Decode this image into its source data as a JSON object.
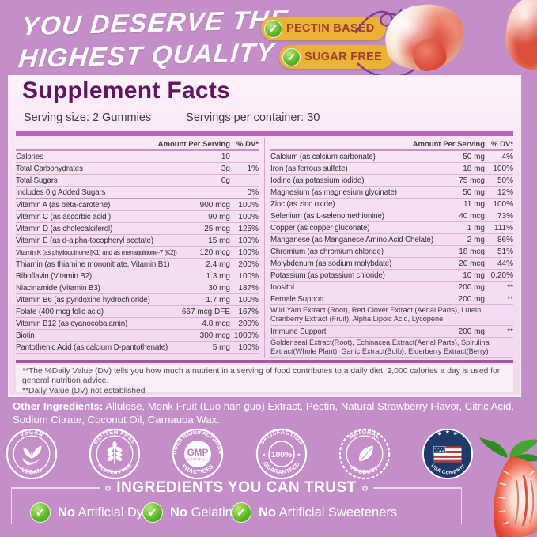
{
  "colors": {
    "background": "#c48fc8",
    "panel": "#f6e1f3",
    "bar_purple": "#b767b5",
    "bar_dark": "#a458a4",
    "title_purple": "#621560",
    "badge_yellow": "#ecb233",
    "badge_text": "#9c4030",
    "check_green": "#58b422",
    "text_dark": "#332d33",
    "white": "#ffffff",
    "usa_navy": "#1e3a6b"
  },
  "header": {
    "title_line1": "YOU DESERVE THE",
    "title_line2": "HIGHEST QUALITY",
    "badges": [
      {
        "label": "PECTIN BASED"
      },
      {
        "label": "SUGAR FREE"
      }
    ],
    "check_glyph": "✓"
  },
  "supplement": {
    "title": "Supplement Facts",
    "serving_size": "Serving size: 2 Gummies",
    "servings_per_container": "Servings per container: 30",
    "col_header_amount": "Amount Per Serving",
    "col_header_dv": "% DV*",
    "left_rows": [
      {
        "name": "Calories",
        "amount": "10",
        "dv": ""
      },
      {
        "name": "Total Carbohydrates",
        "amount": "3g",
        "dv": "1%"
      },
      {
        "name": "Total Sugars",
        "amount": "0g",
        "dv": ""
      },
      {
        "name": "Includes 0 g Added Sugars",
        "amount": "",
        "dv": "0%",
        "thick": true
      },
      {
        "name": "Vitamin A (as beta-carotene)",
        "amount": "900 mcg",
        "dv": "100%"
      },
      {
        "name": "Vitamin C (as ascorbic acid )",
        "amount": "90 mg",
        "dv": "100%"
      },
      {
        "name": "Vitamin D (as cholecalciferol)",
        "amount": "25 mcg",
        "dv": "125%"
      },
      {
        "name": "Vitamin E (as d-alpha-tocopheryl acetate)",
        "amount": "15 mg",
        "dv": "100%"
      },
      {
        "name": "Vitamin K (as phylloquinone [K1] and as menaquinone-7 [K2])",
        "amount": "120 mcg",
        "dv": "100%",
        "small": true
      },
      {
        "name": "Thiamin (as thiamine mononitrate, Vitamin B1)",
        "amount": "2.4 mg",
        "dv": "200%"
      },
      {
        "name": "Riboflavin (Vitamin B2)",
        "amount": "1.3 mg",
        "dv": "100%"
      },
      {
        "name": "Niacinamide (Vitamin B3)",
        "amount": "30 mg",
        "dv": "187%"
      },
      {
        "name": "Vitamin B6 (as pyridoxine hydrochloride)",
        "amount": "1.7 mg",
        "dv": "100%"
      },
      {
        "name": "Folate (400 mcg folic acid)",
        "amount": "667 mcg DFE",
        "dv": "167%"
      },
      {
        "name": "Vitamin B12 (as cyanocobalamin)",
        "amount": "4.8 mcg",
        "dv": "200%"
      },
      {
        "name": "Biotin",
        "amount": "300 mcg",
        "dv": "1000%"
      },
      {
        "name": "Pantothenic Acid (as calcium D-pantothenate)",
        "amount": "5 mg",
        "dv": "100%"
      }
    ],
    "right_rows": [
      {
        "name": "Calcium (as calcium carbonate)",
        "amount": "50 mg",
        "dv": "4%"
      },
      {
        "name": "Iron (as ferrous sulfate)",
        "amount": "18 mg",
        "dv": "100%"
      },
      {
        "name": "Iodine (as potassium iodide)",
        "amount": "75 mcg",
        "dv": "50%"
      },
      {
        "name": "Magnesium (as magnesium glycinate)",
        "amount": "50 mg",
        "dv": "12%"
      },
      {
        "name": "Zinc (as zinc oxide)",
        "amount": "11 mg",
        "dv": "100%"
      },
      {
        "name": "Selenium (as L-selenomethionine)",
        "amount": "40 mcg",
        "dv": "73%"
      },
      {
        "name": "Copper (as copper gluconate)",
        "amount": "1 mg",
        "dv": "111%"
      },
      {
        "name": "Manganese (as Manganese Amino Acid Chelate)",
        "amount": "2 mg",
        "dv": "86%"
      },
      {
        "name": "Chromium (as chromium chloride)",
        "amount": "18 mcg",
        "dv": "51%"
      },
      {
        "name": "Molybdenum (as sodium molybdate)",
        "amount": "20 mcg",
        "dv": "44%"
      },
      {
        "name": "Potassium (as potassium chloride)",
        "amount": "10 mg",
        "dv": "0.20%"
      },
      {
        "name": "Inositol",
        "amount": "200 mg",
        "dv": "**"
      },
      {
        "name": "Female Support",
        "amount": "200 mg",
        "dv": "**",
        "desc": "Wild Yam Extract (Root), Red Clover Extract (Aerial Parts), Lutein, Cranberry Extract (Fruit), Alpha Lipoic Acid, Lycopene."
      },
      {
        "name": "Immune Support",
        "amount": "200 mg",
        "dv": "**",
        "desc": "Goldenseal Extract(Root), Echinacea Extract(Aerial Parts), Spirulina Extract(Whole Plant), Garlic Extract(Bulb), Elderberry Extract(Berry)"
      }
    ],
    "footnote_1": "**The %Daily Value (DV) tells you how much a nutrient in a serving of food contributes to a daily diet. 2,000 calories a day is used for general nutrition advice.",
    "footnote_2": "**Daily Value (DV) not established"
  },
  "other_ingredients": {
    "label": "Other Ingredients:",
    "text": "Allulose, Monk Fruit (Luo han guo) Extract, Pectin, Natural Strawberry Flavor, Citric Acid, Sodium Citrate, Coconut Oil, Carnauba Wax."
  },
  "stamps": [
    {
      "name": "vegan-stamp",
      "top": "VEGAN",
      "bottom": "VEGAN",
      "icon": "sprout-hand-icon"
    },
    {
      "name": "gluten-free-stamp",
      "top": "GLUTEN FREE",
      "bottom": "GLUTEN FREE",
      "icon": "wheat-icon"
    },
    {
      "name": "gmp-stamp",
      "top": "GOOD MANUFACTURING",
      "bottom": "PRACTICES",
      "center_main": "GMP",
      "center_sub": "CERTIFIED",
      "icon": "gmp-seal-icon"
    },
    {
      "name": "satisfaction-stamp",
      "top": "SATISFACTION",
      "bottom": "GUARANTEED",
      "center_main": "100%",
      "star": "★",
      "icon": "satisfaction-seal-icon"
    },
    {
      "name": "natural-stamp",
      "top": "NATURAL",
      "bottom": "PRODUCT",
      "icon": "leaf-icon"
    },
    {
      "name": "usa-stamp",
      "top": "★ ★ ★",
      "bottom": "USA Company",
      "icon": "us-flag-icon"
    }
  ],
  "trust": {
    "title": "INGREDIENTS YOU CAN TRUST",
    "check_glyph": "✓",
    "items": [
      {
        "emphasis": "No",
        "label": "Artificial Dyes"
      },
      {
        "emphasis": "No",
        "label": "Gelatin"
      },
      {
        "emphasis": "No",
        "label": "Artificial Sweeteners"
      }
    ]
  }
}
